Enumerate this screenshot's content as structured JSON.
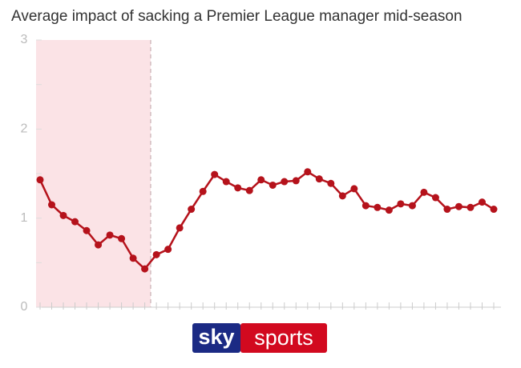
{
  "chart_data": {
    "type": "line",
    "title": "Average impact of sacking a Premier League manager mid-season",
    "categories": [
      null,
      null,
      null,
      null,
      null,
      null,
      null,
      null,
      null,
      null,
      null,
      null,
      null,
      null,
      null,
      null,
      null,
      null,
      null,
      null,
      null,
      null,
      null,
      null,
      null,
      null,
      null,
      null,
      null,
      null,
      null,
      null,
      null,
      null,
      null,
      null,
      null,
      null,
      null,
      null
    ],
    "values": [
      1.43,
      1.15,
      1.03,
      0.96,
      0.86,
      0.7,
      0.81,
      0.77,
      0.55,
      0.43,
      0.59,
      0.65,
      0.89,
      1.1,
      1.3,
      1.49,
      1.41,
      1.34,
      1.31,
      1.43,
      1.37,
      1.41,
      1.42,
      1.52,
      1.44,
      1.39,
      1.25,
      1.33,
      1.14,
      1.12,
      1.09,
      1.16,
      1.14,
      1.29,
      1.23,
      1.1,
      1.13,
      1.12,
      1.18,
      1.1
    ],
    "color": "#b5121b",
    "ylim": [
      0,
      3
    ],
    "yticks": [
      0,
      1,
      2,
      3
    ],
    "minor_yticks": [
      0.5,
      1.5,
      2.5
    ]
  },
  "logo": {
    "left": "sky",
    "right": "sports"
  }
}
